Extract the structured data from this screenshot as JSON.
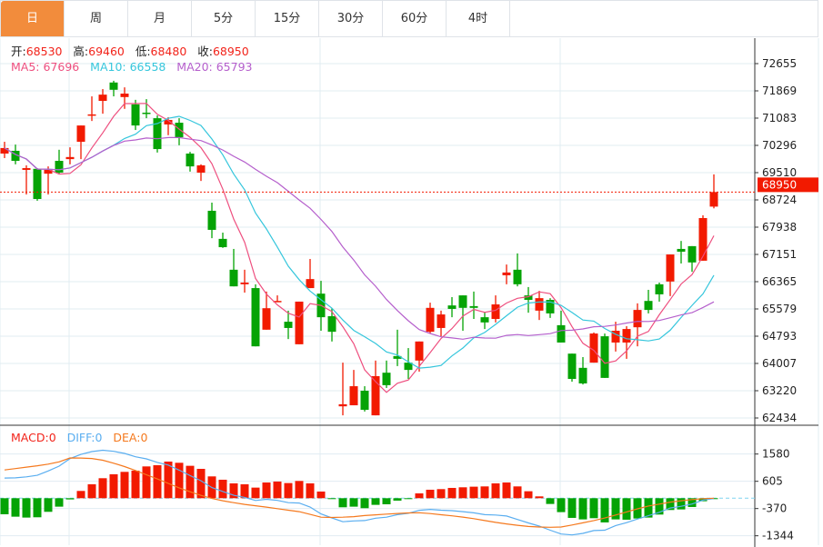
{
  "tabs": [
    {
      "label": "日",
      "active": true
    },
    {
      "label": "周"
    },
    {
      "label": "月"
    },
    {
      "label": "5分"
    },
    {
      "label": "15分"
    },
    {
      "label": "30分"
    },
    {
      "label": "60分"
    },
    {
      "label": "4时"
    }
  ],
  "legend": {
    "open_label": "开:",
    "open": "68530",
    "high_label": "高:",
    "high": "69460",
    "low_label": "低:",
    "low": "68480",
    "close_label": "收:",
    "close": "68950",
    "ma5_label": "MA5: ",
    "ma5": "67696",
    "ma10_label": "MA10: ",
    "ma10": "66558",
    "ma20_label": "MA20: ",
    "ma20": "65793",
    "macd_label": "MACD:",
    "macd": "0",
    "diff_label": "DIFF:",
    "diff": "0",
    "dea_label": "DEA:",
    "dea": "0"
  },
  "colors": {
    "up": "#f21a00",
    "down": "#05a305",
    "ma5": "#ee4f7f",
    "ma10": "#35c6dc",
    "ma20": "#b55fcc",
    "diff": "#5aaef0",
    "dea": "#f5791e",
    "tab_active": "#f28c3c",
    "grid": "#e1ecf2"
  },
  "chart_data": [
    {
      "type": "candlestick",
      "title": "",
      "y_ticks": [
        72655,
        71869,
        71083,
        70296,
        69510,
        68724,
        67938,
        67151,
        66365,
        65579,
        64793,
        64007,
        63220,
        62434
      ],
      "ylim": [
        62434,
        72655
      ],
      "last_price_label": "68950",
      "last_price": 68950,
      "ohlc": [
        [
          70060,
          70400,
          69930,
          70220
        ],
        [
          70140,
          70320,
          69750,
          69850
        ],
        [
          69590,
          69720,
          68880,
          69640
        ],
        [
          69620,
          69640,
          68700,
          68750
        ],
        [
          69480,
          69690,
          68880,
          69590
        ],
        [
          69850,
          70170,
          69480,
          69510
        ],
        [
          69900,
          70240,
          69750,
          69960
        ],
        [
          70400,
          70870,
          69900,
          70870
        ],
        [
          71160,
          71710,
          71000,
          71190
        ],
        [
          71580,
          71920,
          71210,
          71760
        ],
        [
          72110,
          72160,
          71710,
          71900
        ],
        [
          71690,
          71970,
          71350,
          71790
        ],
        [
          71480,
          71610,
          70740,
          70870
        ],
        [
          71240,
          71630,
          71080,
          71210
        ],
        [
          71080,
          71160,
          70090,
          70190
        ],
        [
          70900,
          71110,
          70590,
          71030
        ],
        [
          70950,
          71080,
          70300,
          70530
        ],
        [
          70060,
          70110,
          69540,
          69690
        ],
        [
          69510,
          69750,
          69270,
          69720
        ],
        [
          68410,
          68645,
          67620,
          67860
        ],
        [
          67600,
          67780,
          67340,
          67360
        ],
        [
          66710,
          67310,
          66230,
          66230
        ],
        [
          66290,
          66710,
          66050,
          66340
        ],
        [
          66180,
          66290,
          64500,
          64500
        ],
        [
          64980,
          66080,
          64980,
          65600
        ],
        [
          65790,
          65970,
          65790,
          65810
        ],
        [
          65210,
          65530,
          64710,
          65030
        ],
        [
          64560,
          65790,
          64560,
          65790
        ],
        [
          66180,
          67020,
          66180,
          66440
        ],
        [
          66020,
          66390,
          64950,
          65340
        ],
        [
          65370,
          65600,
          64640,
          64920
        ],
        [
          62770,
          64030,
          62510,
          62830
        ],
        [
          62800,
          63820,
          62800,
          63350
        ],
        [
          63220,
          63350,
          62620,
          62670
        ],
        [
          62510,
          64090,
          62510,
          63640
        ],
        [
          63740,
          64090,
          63300,
          63380
        ],
        [
          64220,
          64980,
          63930,
          64140
        ],
        [
          64030,
          64450,
          63560,
          63820
        ],
        [
          64090,
          64640,
          63770,
          64640
        ],
        [
          64920,
          65760,
          64870,
          65610
        ],
        [
          65030,
          65530,
          64790,
          65420
        ],
        [
          65680,
          65920,
          65340,
          65580
        ],
        [
          65970,
          65970,
          64950,
          65610
        ],
        [
          65660,
          66080,
          65290,
          65610
        ],
        [
          65340,
          65500,
          65000,
          65190
        ],
        [
          65290,
          65970,
          65190,
          65710
        ],
        [
          66550,
          66860,
          66290,
          66630
        ],
        [
          66710,
          67180,
          66230,
          66290
        ],
        [
          65970,
          66210,
          65470,
          65840
        ],
        [
          65530,
          66100,
          65260,
          65890
        ],
        [
          65840,
          65890,
          65320,
          65450
        ],
        [
          65110,
          65530,
          64610,
          64610
        ],
        [
          64290,
          64290,
          63480,
          63560
        ],
        [
          63880,
          64190,
          63400,
          63430
        ],
        [
          64030,
          64900,
          64030,
          64870
        ],
        [
          64790,
          64870,
          63590,
          63590
        ],
        [
          64610,
          65210,
          64350,
          64950
        ],
        [
          64610,
          65080,
          64140,
          65000
        ],
        [
          65050,
          65740,
          64500,
          65550
        ],
        [
          65810,
          66130,
          65450,
          65550
        ],
        [
          66290,
          66340,
          65790,
          66000
        ],
        [
          66370,
          67150,
          65950,
          67150
        ],
        [
          67310,
          67540,
          66890,
          67230
        ],
        [
          67390,
          67390,
          66650,
          66920
        ],
        [
          66970,
          68280,
          66970,
          68200
        ],
        [
          68530,
          69460,
          68480,
          68950
        ]
      ],
      "ma_periods": [
        5,
        10,
        20
      ]
    },
    {
      "type": "bar",
      "title": "MACD",
      "y_ticks": [
        1580,
        605,
        -370,
        -1344
      ],
      "macd": [
        -574,
        -661,
        -693,
        -682,
        -487,
        -303,
        -43,
        260,
        498,
        715,
        856,
        942,
        986,
        1137,
        1180,
        1310,
        1267,
        1159,
        1050,
        780,
        661,
        531,
        498,
        379,
        563,
        596,
        542,
        617,
        531,
        238,
        -32,
        -325,
        -303,
        -357,
        -238,
        -217,
        -87,
        -32,
        173,
        303,
        325,
        368,
        390,
        412,
        422,
        531,
        563,
        422,
        249,
        65,
        -206,
        -498,
        -704,
        -758,
        -715,
        -866,
        -758,
        -769,
        -726,
        -693,
        -585,
        -422,
        -401,
        -314,
        -108,
        -20
      ],
      "dea": [
        1010,
        1060,
        1110,
        1160,
        1220,
        1300,
        1440,
        1435,
        1419,
        1360,
        1250,
        1130,
        990,
        840,
        690,
        530,
        370,
        230,
        100,
        -10,
        -90,
        -160,
        -220,
        -270,
        -320,
        -375,
        -430,
        -480,
        -580,
        -680,
        -690,
        -680,
        -660,
        -620,
        -596,
        -570,
        -545,
        -525,
        -520,
        -550,
        -590,
        -630,
        -675,
        -730,
        -800,
        -866,
        -920,
        -970,
        -1010,
        -1030,
        -1040,
        -1030,
        -960,
        -880,
        -800,
        -710,
        -600,
        -490,
        -380,
        -280,
        -210,
        -140,
        -90,
        -50,
        -15,
        0
      ]
    }
  ]
}
